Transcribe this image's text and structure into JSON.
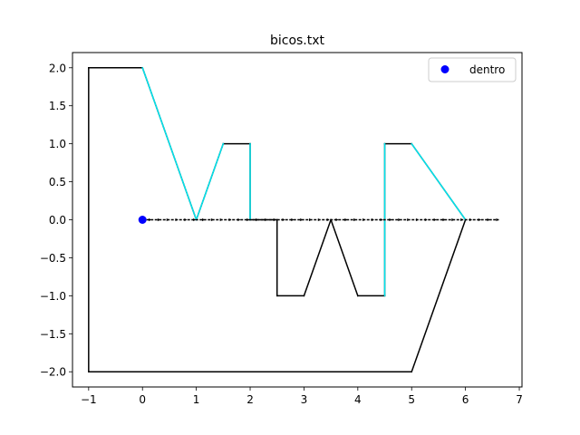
{
  "chart_data": {
    "type": "line",
    "title": "bicos.txt",
    "xlabel": "",
    "ylabel": "",
    "xlim": [
      -1.3,
      7.05
    ],
    "ylim": [
      -2.2,
      2.2
    ],
    "xticks": [
      -1,
      0,
      1,
      2,
      3,
      4,
      5,
      6,
      7
    ],
    "xtick_labels": [
      "−1",
      "0",
      "1",
      "2",
      "3",
      "4",
      "5",
      "6",
      "7"
    ],
    "yticks": [
      2.0,
      1.5,
      1.0,
      0.5,
      0.0,
      -0.5,
      -1.0,
      -1.5,
      -2.0
    ],
    "ytick_labels": [
      "2.0",
      "1.5",
      "1.0",
      "0.5",
      "0.0",
      "−0.5",
      "−1.0",
      "−1.5",
      "−2.0"
    ],
    "grid": false,
    "legend_position": "top-right",
    "polygon": {
      "color": "#000000",
      "points": [
        [
          -1,
          2
        ],
        [
          0,
          2
        ],
        [
          1,
          0
        ],
        [
          1.5,
          1
        ],
        [
          2,
          1
        ],
        [
          2,
          0
        ],
        [
          2.5,
          0
        ],
        [
          2.5,
          -1
        ],
        [
          3,
          -1
        ],
        [
          3.5,
          0
        ],
        [
          4,
          -1
        ],
        [
          4.5,
          -1
        ],
        [
          4.5,
          1
        ],
        [
          5,
          1
        ],
        [
          6,
          0
        ],
        [
          5,
          -2
        ],
        [
          -1,
          -2
        ],
        [
          -1,
          2
        ]
      ]
    },
    "crossed_segments": {
      "color": "#00e5ee",
      "segments": [
        [
          [
            0,
            2
          ],
          [
            1,
            0
          ]
        ],
        [
          [
            1,
            0
          ],
          [
            1.5,
            1
          ]
        ],
        [
          [
            2,
            1
          ],
          [
            2,
            0
          ]
        ],
        [
          [
            4.5,
            -1
          ],
          [
            4.5,
            1
          ]
        ],
        [
          [
            5,
            1
          ],
          [
            6,
            0
          ]
        ]
      ]
    },
    "ray": {
      "color": "#000000",
      "from": [
        0,
        0
      ],
      "to": [
        6.62,
        0
      ],
      "style": "dashed-arrow"
    },
    "series": [
      {
        "name": "dentro",
        "type": "scatter",
        "color": "#0000ff",
        "points": [
          [
            0,
            0
          ]
        ]
      }
    ]
  }
}
